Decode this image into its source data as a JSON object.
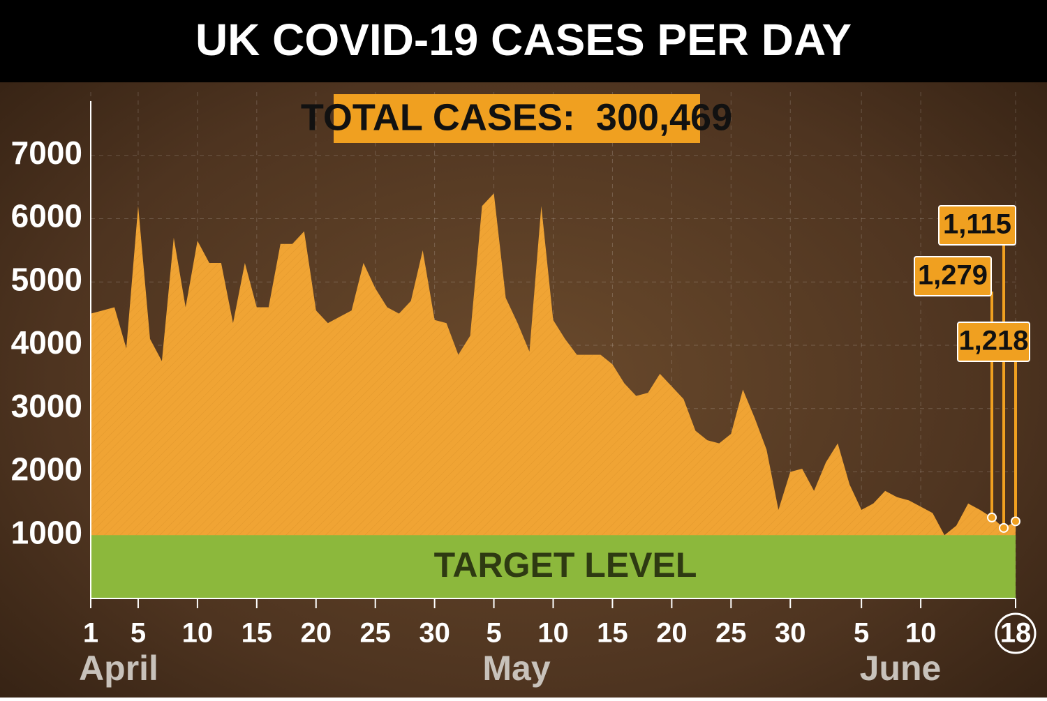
{
  "chart_data": {
    "type": "area",
    "title": "UK COVID-19 CASES PER DAY",
    "total_text": "TOTAL CASES:  300,469",
    "x": [
      1,
      2,
      3,
      4,
      5,
      6,
      7,
      8,
      9,
      10,
      11,
      12,
      13,
      14,
      15,
      16,
      17,
      18,
      19,
      20,
      21,
      22,
      23,
      24,
      25,
      26,
      27,
      28,
      29,
      30,
      31,
      32,
      33,
      34,
      35,
      36,
      37,
      38,
      39,
      40,
      41,
      42,
      43,
      44,
      45,
      46,
      47,
      48,
      49,
      50,
      51,
      52,
      53,
      54,
      55,
      56,
      57,
      58,
      59,
      60,
      61,
      62,
      63,
      64,
      65,
      66,
      67,
      68,
      69,
      70,
      71,
      72,
      73,
      74,
      75,
      76,
      77,
      78,
      79
    ],
    "values": [
      4500,
      4550,
      4600,
      3950,
      6200,
      4100,
      3750,
      5700,
      4600,
      5650,
      5300,
      5300,
      4350,
      5300,
      4600,
      4600,
      5600,
      5600,
      5800,
      4550,
      4350,
      4450,
      4550,
      5300,
      4900,
      4600,
      4500,
      4700,
      5500,
      4400,
      4350,
      3850,
      4150,
      6200,
      6400,
      4750,
      4350,
      3900,
      6200,
      4400,
      4100,
      3850,
      3850,
      3850,
      3700,
      3400,
      3200,
      3250,
      3550,
      3350,
      3150,
      2650,
      2500,
      2450,
      2600,
      3300,
      2850,
      2350,
      1400,
      2000,
      2050,
      1700,
      2150,
      2450,
      1800,
      1400,
      1500,
      1700,
      1600,
      1550,
      1450,
      1350,
      1000,
      1150,
      1500,
      1400,
      1279,
      1115,
      1218
    ],
    "value_labels": [
      null,
      null,
      null,
      null,
      null,
      null,
      null,
      null,
      null,
      null,
      null,
      null,
      null,
      null,
      null,
      null,
      null,
      null,
      null,
      null,
      null,
      null,
      null,
      null,
      null,
      null,
      null,
      null,
      null,
      null,
      null,
      null,
      null,
      null,
      null,
      null,
      null,
      null,
      null,
      null,
      null,
      null,
      null,
      null,
      null,
      null,
      null,
      null,
      null,
      null,
      null,
      null,
      null,
      null,
      null,
      null,
      null,
      null,
      null,
      null,
      null,
      null,
      null,
      null,
      null,
      null,
      null,
      null,
      null,
      null,
      null,
      null,
      null,
      null,
      null,
      null,
      "1,279",
      "1,115",
      "1,218"
    ],
    "color": "#f0a434",
    "target": {
      "label": "TARGET LEVEL",
      "value": 1000,
      "color": "#8cb83c"
    },
    "xlim": [
      1,
      79
    ],
    "xticks": [
      1,
      5,
      10,
      15,
      20,
      25,
      30,
      {
        "value": 35,
        "label": "5"
      },
      {
        "value": 40,
        "label": "10"
      },
      {
        "value": 45,
        "label": "15"
      },
      {
        "value": 50,
        "label": "20"
      },
      {
        "value": 55,
        "label": "25"
      },
      {
        "value": 60,
        "label": "30"
      },
      {
        "value": 66,
        "label": "5"
      },
      {
        "value": 71,
        "label": "10"
      },
      {
        "value": 79,
        "label": "18"
      }
    ],
    "months": [
      "April",
      "May",
      "June"
    ],
    "ylim": [
      0,
      8000
    ],
    "yticks": [
      1000,
      2000,
      3000,
      4000,
      5000,
      6000,
      7000
    ],
    "grid": true
  }
}
